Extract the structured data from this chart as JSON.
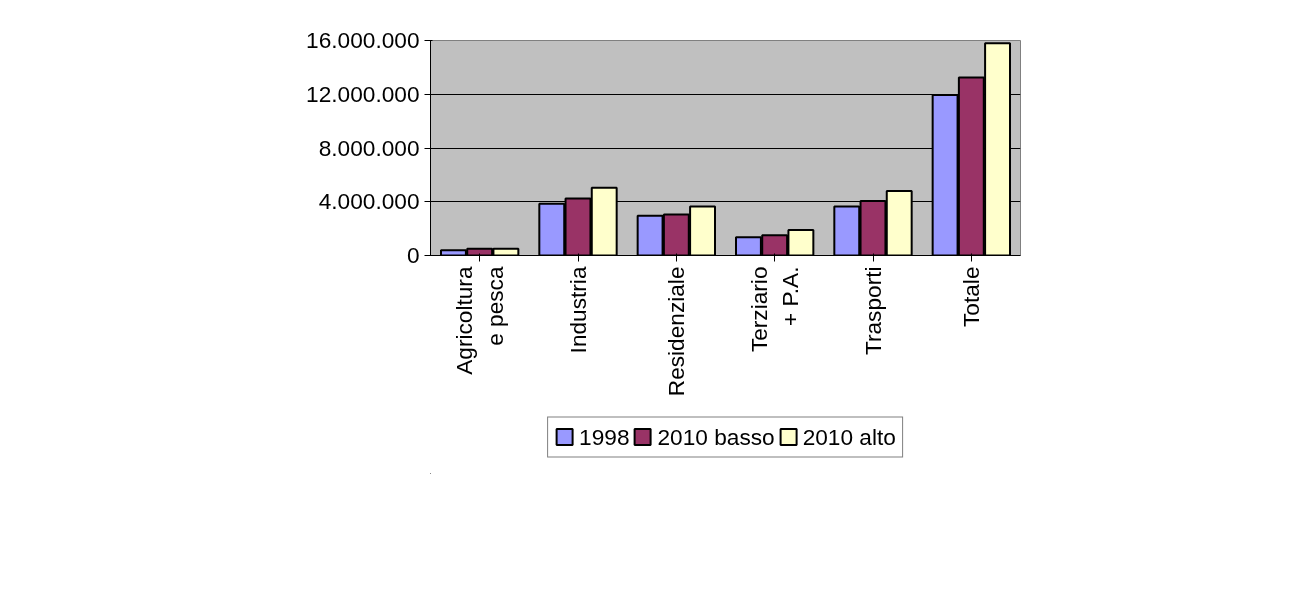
{
  "chart_data": {
    "type": "bar",
    "categories": [
      "Agricoltura e pesca",
      "Industria",
      "Residenziale",
      "Terziario + P.A.",
      "Trasporti",
      "Totale"
    ],
    "series": [
      {
        "name": "1998",
        "color": "#9999ff",
        "values": [
          400000,
          3850000,
          2950000,
          1350000,
          3650000,
          11950000
        ]
      },
      {
        "name": "2010 basso",
        "color": "#993366",
        "values": [
          500000,
          4250000,
          3050000,
          1500000,
          4050000,
          13250000
        ]
      },
      {
        "name": "2010 alto",
        "color": "#ffffcc",
        "values": [
          500000,
          5050000,
          3650000,
          1900000,
          4800000,
          15800000
        ]
      }
    ],
    "ylim": [
      0,
      16000000
    ],
    "yticks": [
      {
        "value": 0,
        "label": "0"
      },
      {
        "value": 4000000,
        "label": "4.000.000"
      },
      {
        "value": 8000000,
        "label": "8.000.000"
      },
      {
        "value": 12000000,
        "label": "12.000.000"
      },
      {
        "value": 16000000,
        "label": "16.000.000"
      }
    ],
    "grid": "y",
    "legend": "bottom"
  }
}
